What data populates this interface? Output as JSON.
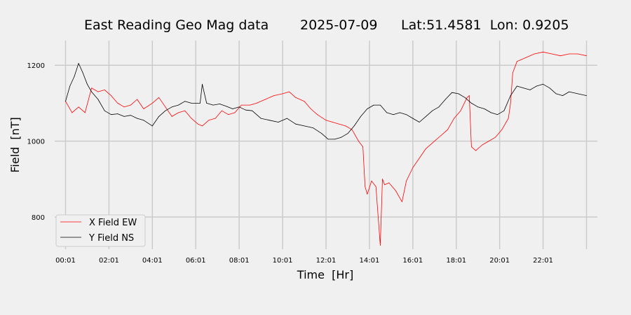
{
  "chart_data": {
    "type": "line",
    "title_parts": [
      "East Reading Geo Mag data",
      "2025-07-09",
      "Lat:51.4581  Lon: 0.9205"
    ],
    "xlabel": "Time  [Hr]",
    "ylabel": "Field  [nT]",
    "xlim": [
      -0.5,
      24.5
    ],
    "ylim": [
      715,
      1265
    ],
    "x_ticks": [
      0,
      2,
      4,
      6,
      8,
      10,
      12,
      14,
      16,
      18,
      20,
      22
    ],
    "x_tick_labels": [
      "00:01",
      "02:01",
      "04:01",
      "06:01",
      "08:01",
      "10:01",
      "12:01",
      "14:01",
      "16:01",
      "18:01",
      "20:01",
      "22:01"
    ],
    "x_grid_extra": [
      24
    ],
    "y_ticks": [
      800,
      1000,
      1200
    ],
    "y_tick_labels": [
      "800",
      "1000",
      "1200"
    ],
    "grid": true,
    "legend_position": "lower-left",
    "series": [
      {
        "name": "X Field EW",
        "color": "#ff0000",
        "x": [
          0,
          0.3,
          0.6,
          0.9,
          1.2,
          1.5,
          1.8,
          2.1,
          2.4,
          2.7,
          3.0,
          3.3,
          3.6,
          4.0,
          4.3,
          4.6,
          4.9,
          5.2,
          5.5,
          5.8,
          6.1,
          6.3,
          6.6,
          6.9,
          7.2,
          7.5,
          7.8,
          8.1,
          8.5,
          8.8,
          9.2,
          9.6,
          10.0,
          10.3,
          10.6,
          11.0,
          11.3,
          11.6,
          12.0,
          12.3,
          12.6,
          12.9,
          13.2,
          13.5,
          13.7,
          13.8,
          13.9,
          14.1,
          14.3,
          14.5,
          14.6,
          14.7,
          14.9,
          15.2,
          15.5,
          15.7,
          16.0,
          16.3,
          16.6,
          17.0,
          17.3,
          17.6,
          17.9,
          18.2,
          18.5,
          18.6,
          18.7,
          18.9,
          19.2,
          19.5,
          19.8,
          20.1,
          20.3,
          20.4,
          20.5,
          20.6,
          20.8,
          21.2,
          21.6,
          22.0,
          22.4,
          22.8,
          23.2,
          23.6,
          24.0
        ],
        "values": [
          1105,
          1075,
          1090,
          1075,
          1140,
          1130,
          1135,
          1120,
          1100,
          1090,
          1095,
          1110,
          1085,
          1100,
          1115,
          1090,
          1065,
          1075,
          1080,
          1060,
          1045,
          1040,
          1055,
          1060,
          1080,
          1070,
          1075,
          1095,
          1095,
          1100,
          1110,
          1120,
          1125,
          1130,
          1115,
          1105,
          1085,
          1070,
          1055,
          1050,
          1045,
          1040,
          1030,
          1000,
          985,
          880,
          860,
          895,
          880,
          725,
          900,
          885,
          890,
          870,
          840,
          895,
          930,
          955,
          980,
          1000,
          1015,
          1030,
          1060,
          1080,
          1115,
          1120,
          985,
          975,
          990,
          1000,
          1010,
          1030,
          1050,
          1060,
          1100,
          1180,
          1210,
          1220,
          1230,
          1235,
          1230,
          1225,
          1230,
          1230,
          1225
        ]
      },
      {
        "name": "Y Field NS",
        "color": "#000000",
        "x": [
          0,
          0.2,
          0.4,
          0.6,
          0.8,
          1.0,
          1.2,
          1.5,
          1.8,
          2.1,
          2.4,
          2.7,
          3.0,
          3.3,
          3.6,
          4.0,
          4.3,
          4.6,
          4.9,
          5.2,
          5.5,
          5.8,
          6.0,
          6.2,
          6.3,
          6.5,
          6.8,
          7.1,
          7.4,
          7.7,
          8.0,
          8.3,
          8.6,
          9.0,
          9.4,
          9.8,
          10.2,
          10.6,
          11.0,
          11.4,
          11.8,
          12.1,
          12.4,
          12.7,
          13.0,
          13.3,
          13.6,
          13.9,
          14.2,
          14.5,
          14.8,
          15.1,
          15.4,
          15.7,
          16.0,
          16.3,
          16.6,
          16.9,
          17.2,
          17.5,
          17.8,
          18.1,
          18.4,
          18.7,
          19.0,
          19.3,
          19.6,
          19.9,
          20.2,
          20.5,
          20.8,
          21.1,
          21.4,
          21.7,
          22.0,
          22.3,
          22.6,
          22.9,
          23.2,
          23.6,
          24.0
        ],
        "values": [
          1105,
          1145,
          1170,
          1205,
          1180,
          1150,
          1130,
          1110,
          1080,
          1070,
          1072,
          1065,
          1068,
          1060,
          1055,
          1040,
          1065,
          1080,
          1090,
          1095,
          1105,
          1100,
          1100,
          1100,
          1150,
          1100,
          1095,
          1098,
          1092,
          1085,
          1090,
          1082,
          1080,
          1060,
          1055,
          1050,
          1060,
          1045,
          1040,
          1035,
          1020,
          1005,
          1005,
          1010,
          1020,
          1040,
          1065,
          1085,
          1095,
          1095,
          1075,
          1070,
          1075,
          1070,
          1060,
          1050,
          1065,
          1080,
          1090,
          1110,
          1128,
          1125,
          1115,
          1100,
          1090,
          1085,
          1075,
          1070,
          1080,
          1120,
          1145,
          1140,
          1135,
          1145,
          1150,
          1140,
          1125,
          1120,
          1130,
          1125,
          1120
        ]
      }
    ]
  }
}
